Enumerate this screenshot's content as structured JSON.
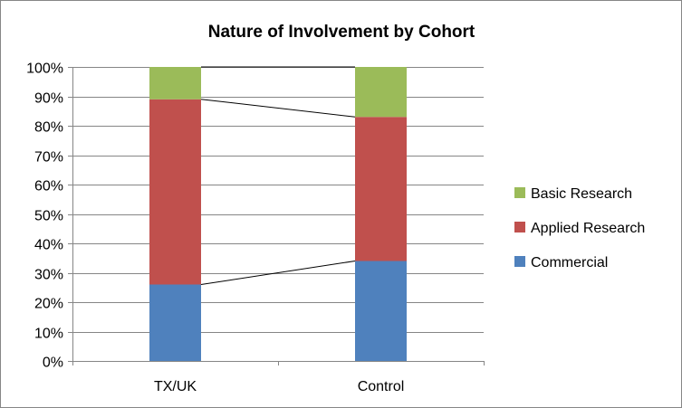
{
  "chart_data": {
    "type": "bar",
    "stacked": true,
    "percent": true,
    "title": "Nature of Involvement by Cohort",
    "xlabel": "",
    "ylabel": "",
    "categories": [
      "TX/UK",
      "Control"
    ],
    "ylim": [
      0,
      100
    ],
    "yticks": [
      "0%",
      "10%",
      "20%",
      "30%",
      "40%",
      "50%",
      "60%",
      "70%",
      "80%",
      "90%",
      "100%"
    ],
    "grid": true,
    "legend_position": "right",
    "series_lines": true,
    "series": [
      {
        "name": "Commercial",
        "values": [
          26,
          34
        ],
        "color": "#4F81BD"
      },
      {
        "name": "Applied Research",
        "values": [
          63,
          49
        ],
        "color": "#C0504D"
      },
      {
        "name": "Basic Research",
        "values": [
          11,
          17
        ],
        "color": "#9BBB59"
      }
    ],
    "legend_order": [
      "Basic Research",
      "Applied Research",
      "Commercial"
    ]
  }
}
